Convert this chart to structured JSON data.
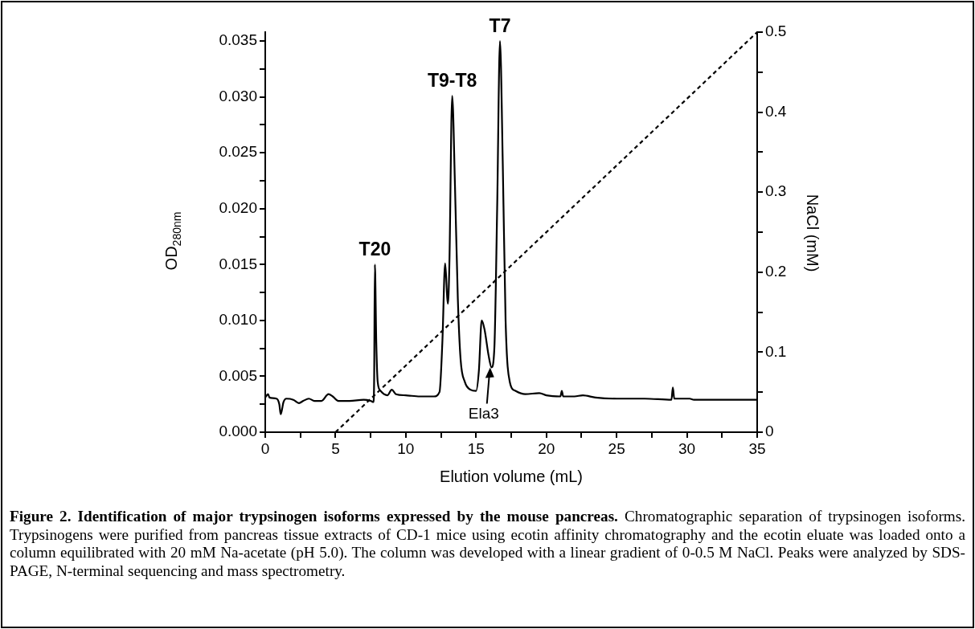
{
  "chart_data": {
    "type": "line",
    "xlabel": "Elution volume (mL)",
    "ylabel": "OD$_{280nm}$",
    "y2label": "NaCl (mM)",
    "xlim": [
      0,
      35
    ],
    "xticks": [
      0,
      {
        "value": 2.5,
        "label": null
      },
      5,
      {
        "value": 7.5,
        "label": null
      },
      10,
      {
        "value": 12.5,
        "label": null
      },
      15,
      {
        "value": 17.5,
        "label": null
      },
      20,
      {
        "value": 22.5,
        "label": null
      },
      25,
      {
        "value": 27.5,
        "label": null
      },
      30,
      {
        "value": 32.5,
        "label": null
      },
      35
    ],
    "ylim": [
      0,
      0.0358
    ],
    "yticks": [
      {
        "value": 0,
        "label": "0.000"
      },
      {
        "value": 0.0025,
        "label": null
      },
      {
        "value": 0.005,
        "label": "0.005"
      },
      {
        "value": 0.0075,
        "label": null
      },
      {
        "value": 0.01,
        "label": "0.010"
      },
      {
        "value": 0.0125,
        "label": null
      },
      {
        "value": 0.015,
        "label": "0.015"
      },
      {
        "value": 0.0175,
        "label": null
      },
      {
        "value": 0.02,
        "label": "0.020"
      },
      {
        "value": 0.0225,
        "label": null
      },
      {
        "value": 0.025,
        "label": "0.025"
      },
      {
        "value": 0.0275,
        "label": null
      },
      {
        "value": 0.03,
        "label": "0.030"
      },
      {
        "value": 0.0325,
        "label": null
      },
      {
        "value": 0.035,
        "label": "0.035"
      }
    ],
    "y2lim": [
      0,
      0.5
    ],
    "y2ticks": [
      0,
      {
        "value": 0.05,
        "label": null
      },
      0.1,
      {
        "value": 0.15,
        "label": null
      },
      0.2,
      {
        "value": 0.25,
        "label": null
      },
      0.3,
      {
        "value": 0.35,
        "label": null
      },
      0.4,
      {
        "value": 0.45,
        "label": null
      },
      0.5
    ],
    "grid": false,
    "legend": false,
    "marker": "none",
    "series": [
      {
        "color": "#000000",
        "line_style": "solid",
        "x": [
          0,
          0.2,
          0.3,
          0.8,
          1.0,
          1.1,
          1.3,
          1.5,
          2.0,
          2.4,
          2.7,
          3.1,
          3.5,
          4.0,
          4.5,
          4.8,
          5.2,
          6,
          7,
          7.5,
          7.7,
          7.75,
          7.8,
          7.9,
          8.0,
          8.2,
          8.7,
          9.0,
          9.3,
          10,
          11,
          12,
          12.4,
          12.6,
          12.8,
          12.95,
          13.0,
          13.1,
          13.3,
          13.5,
          13.7,
          13.9,
          14.2,
          14.6,
          15.0,
          15.2,
          15.4,
          15.6,
          15.9,
          16.1,
          16.3,
          16.5,
          16.7,
          16.9,
          17.1,
          17.4,
          17.8,
          18.5,
          19.5,
          20,
          21,
          21.1,
          21.2,
          22,
          22.6,
          23.5,
          25,
          27,
          28.9,
          29.0,
          29.1,
          30.2,
          30.5,
          32,
          35
        ],
        "values": [
          0.0031,
          0.0034,
          0.0031,
          0.003,
          0.0025,
          0.0016,
          0.0027,
          0.003,
          0.0029,
          0.0026,
          0.0028,
          0.003,
          0.0028,
          0.0028,
          0.0034,
          0.0032,
          0.0028,
          0.0028,
          0.0029,
          0.0028,
          0.0027,
          0.005,
          0.015,
          0.008,
          0.0045,
          0.0037,
          0.0033,
          0.0038,
          0.0034,
          0.0033,
          0.0032,
          0.0032,
          0.0036,
          0.008,
          0.0151,
          0.012,
          0.0115,
          0.015,
          0.0301,
          0.022,
          0.012,
          0.0065,
          0.0045,
          0.0038,
          0.0037,
          0.0055,
          0.01,
          0.0092,
          0.0068,
          0.0058,
          0.0075,
          0.02,
          0.035,
          0.024,
          0.01,
          0.0045,
          0.0037,
          0.0034,
          0.0035,
          0.0033,
          0.0032,
          0.0037,
          0.0032,
          0.0032,
          0.0033,
          0.0031,
          0.003,
          0.003,
          0.0029,
          0.004,
          0.003,
          0.003,
          0.0029,
          0.0029,
          0.0029
        ]
      },
      {
        "color": "#000000",
        "axis": "y2",
        "line_style": "dashed",
        "x": [
          5,
          35
        ],
        "values": [
          0,
          0.5
        ]
      }
    ],
    "annotations": [
      {
        "text": "T20",
        "x": 7.8,
        "y": 0.015
      },
      {
        "text": "T9-T8",
        "x": 13.3,
        "y": 0.0301
      },
      {
        "text": "T7",
        "x": 16.7,
        "y": 0.035
      },
      {
        "text": "Ela3",
        "x": 16.0,
        "y": 0.006
      },
      "Figure 2. Identification of major trypsinogen isoforms expressed by the mouse pancreas.",
      "Chromatographic separation of trypsinogen isoforms. Trypsinogens were purified from pancreas tissue extracts of CD-1 mice using ecotin affinity chromatography and the ecotin eluate was loaded onto a column equilibrated with 20 mM Na-acetate (pH 5.0). The column was developed with a linear gradient of 0-0.5 M NaCl. Peaks were analyzed by SDS-PAGE, N-terminal sequencing and mass spectrometry."
    ]
  }
}
